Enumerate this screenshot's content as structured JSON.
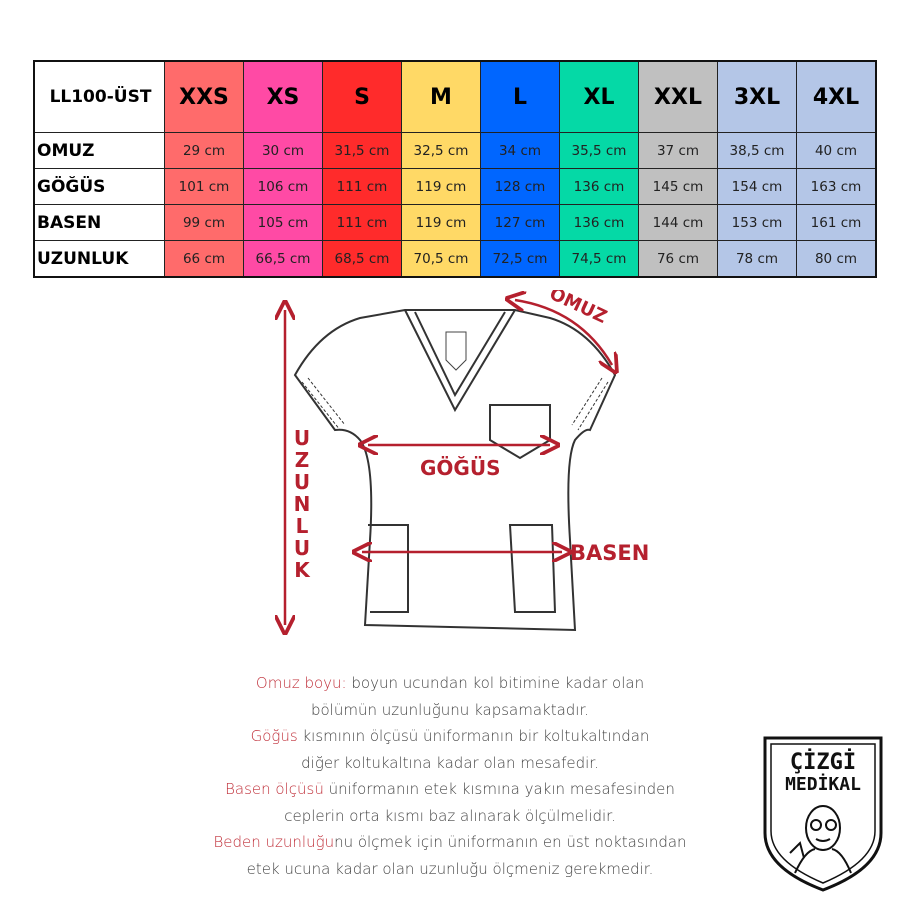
{
  "table": {
    "corner_label": "LL100-ÜST",
    "sizes": [
      {
        "label": "XXS",
        "color": "#ff6b6b"
      },
      {
        "label": "XS",
        "color": "#ff4aa5"
      },
      {
        "label": "S",
        "color": "#ff2b2b"
      },
      {
        "label": "M",
        "color": "#ffd966"
      },
      {
        "label": "L",
        "color": "#0066ff"
      },
      {
        "label": "XL",
        "color": "#05d9a6"
      },
      {
        "label": "XXL",
        "color": "#c0c0c0"
      },
      {
        "label": "3XL",
        "color": "#b4c6e7"
      },
      {
        "label": "4XL",
        "color": "#b4c6e7"
      }
    ],
    "rows": [
      {
        "label": "OMUZ",
        "values": [
          "29 cm",
          "30 cm",
          "31,5 cm",
          "32,5 cm",
          "34 cm",
          "35,5 cm",
          "37 cm",
          "38,5 cm",
          "40 cm"
        ]
      },
      {
        "label": "GÖĞÜS",
        "values": [
          "101 cm",
          "106 cm",
          "111 cm",
          "119 cm",
          "128 cm",
          "136 cm",
          "145 cm",
          "154 cm",
          "163 cm"
        ]
      },
      {
        "label": "BASEN",
        "values": [
          "99 cm",
          "105 cm",
          "111 cm",
          "119 cm",
          "127 cm",
          "136 cm",
          "144 cm",
          "153 cm",
          "161 cm"
        ]
      },
      {
        "label": "UZUNLUK",
        "values": [
          "66 cm",
          "66,5 cm",
          "68,5 cm",
          "70,5 cm",
          "72,5 cm",
          "74,5 cm",
          "76 cm",
          "78 cm",
          "80 cm"
        ]
      }
    ]
  },
  "diagram": {
    "omuz": "OMUZ",
    "gogus": "GÖĞÜS",
    "basen": "BASEN",
    "uzunluk": "UZUNLUK",
    "accent_color": "#b5202e"
  },
  "descriptions": [
    {
      "lead": "Omuz boyu:",
      "rest": " boyun ucundan kol bitimine kadar olan"
    },
    {
      "lead": "",
      "rest": "bölümün uzunluğunu kapsamaktadır."
    },
    {
      "lead": "Göğüs",
      "rest": " kısmının ölçüsü üniformanın bir koltukaltından"
    },
    {
      "lead": "",
      "rest": "diğer koltukaltına kadar olan mesafedir."
    },
    {
      "lead": "Basen ölçüsü",
      "rest": " üniformanın etek kısmına yakın mesafesinden"
    },
    {
      "lead": "",
      "rest": "ceplerin orta kısmı baz alınarak ölçülmelidir."
    },
    {
      "lead": "Beden uzunluğu",
      "rest": "nu ölçmek için üniformanın en üst noktasından"
    },
    {
      "lead": "",
      "rest": "etek ucuna kadar olan uzunluğu ölçmeniz gerekmedir."
    }
  ],
  "logo": {
    "line1": "ÇİZGİ",
    "line2": "MEDİKAL"
  }
}
